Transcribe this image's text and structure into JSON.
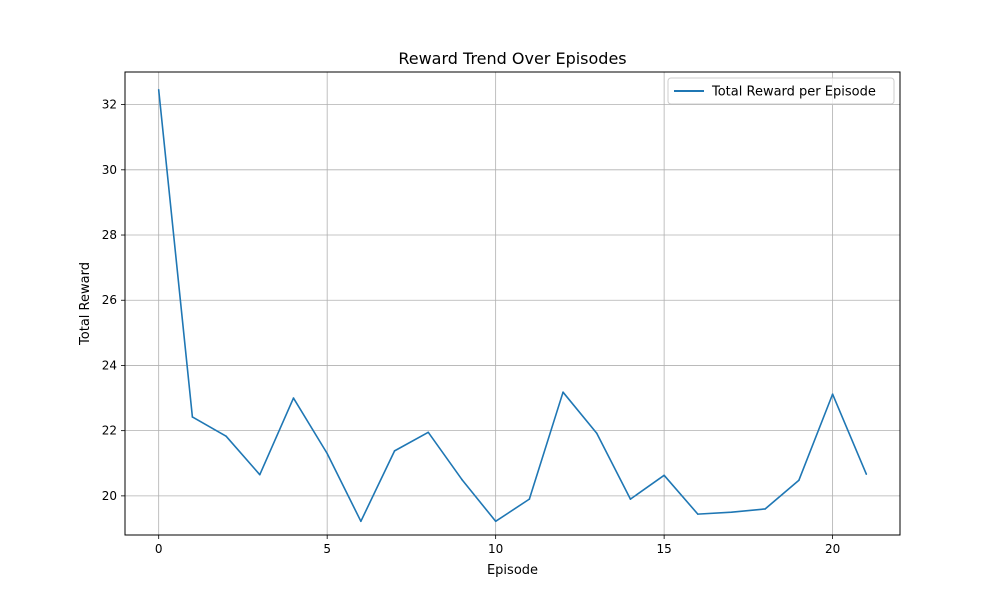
{
  "chart_data": {
    "type": "line",
    "title": "Reward Trend Over Episodes",
    "xlabel": "Episode",
    "ylabel": "Total Reward",
    "xlim": [
      -1,
      22
    ],
    "ylim": [
      18.8,
      33.0
    ],
    "x_ticks": [
      0,
      5,
      10,
      15,
      20
    ],
    "y_ticks": [
      20,
      22,
      24,
      26,
      28,
      30,
      32
    ],
    "grid": true,
    "legend_position": "top-right",
    "series": [
      {
        "name": "Total Reward per Episode",
        "color": "#1f77b4",
        "x": [
          0,
          1,
          2,
          3,
          4,
          5,
          6,
          7,
          8,
          9,
          10,
          11,
          12,
          13,
          14,
          15,
          16,
          17,
          18,
          19,
          20,
          21
        ],
        "y": [
          32.45,
          22.42,
          21.83,
          20.65,
          23.0,
          21.3,
          19.22,
          21.38,
          21.95,
          20.5,
          19.22,
          19.9,
          23.18,
          21.92,
          19.9,
          20.63,
          19.44,
          19.5,
          19.6,
          20.48,
          23.12,
          20.67
        ]
      }
    ]
  }
}
